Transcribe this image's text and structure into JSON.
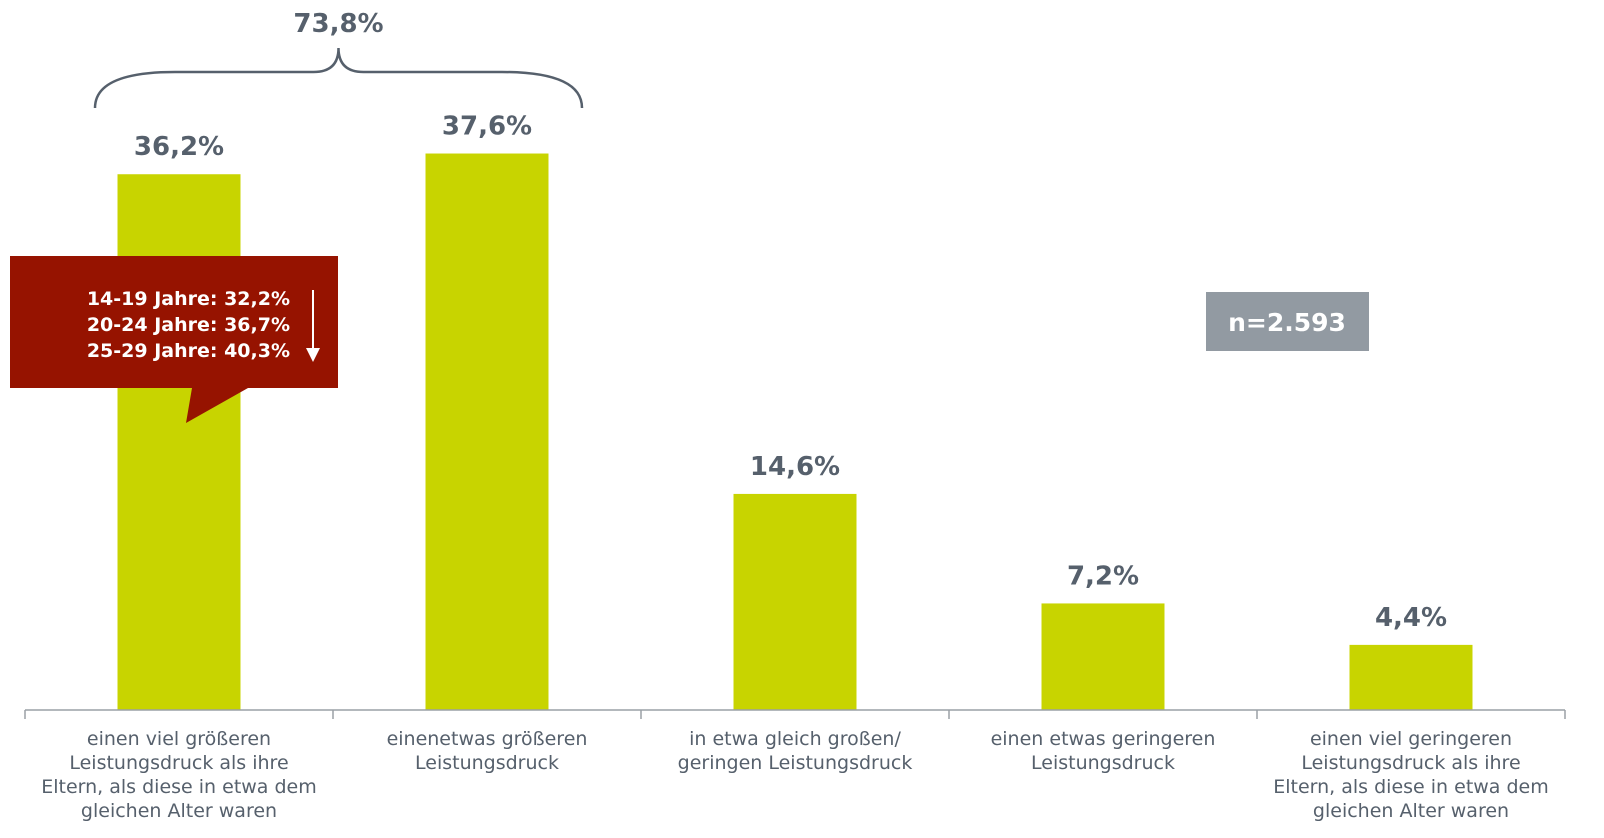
{
  "chart_data": {
    "type": "bar",
    "categories": [
      [
        "einen viel größeren",
        "Leistungsdruck als ihre",
        "Eltern, als diese in etwa dem",
        "gleichen Alter waren"
      ],
      [
        "einenetwas größeren",
        "Leistungsdruck"
      ],
      [
        "in etwa gleich großen/",
        "geringen Leistungsdruck"
      ],
      [
        "einen etwas geringeren",
        "Leistungsdruck"
      ],
      [
        "einen viel geringeren",
        "Leistungsdruck als ihre",
        "Eltern, als diese in etwa dem",
        "gleichen Alter waren"
      ]
    ],
    "values": [
      36.2,
      37.6,
      14.6,
      7.2,
      4.4
    ],
    "value_labels": [
      "36,2%",
      "37,6%",
      "14,6%",
      "7,2%",
      "4,4%"
    ],
    "ylim": [
      0,
      40
    ],
    "grid": false,
    "bar_color": "#c8d400",
    "label_color": "#56606c",
    "bracket": {
      "label": "73,8%",
      "spans": [
        0,
        1
      ]
    },
    "callout": {
      "lines": [
        "14-19 Jahre: 32,2%",
        "20-24 Jahre: 36,7%",
        "25-29 Jahre: 40,3%"
      ],
      "color": "#961300",
      "arrow_icon": "arrow-down-icon"
    },
    "sample_badge": {
      "label": "n=2.593",
      "color": "#929aa2"
    }
  }
}
